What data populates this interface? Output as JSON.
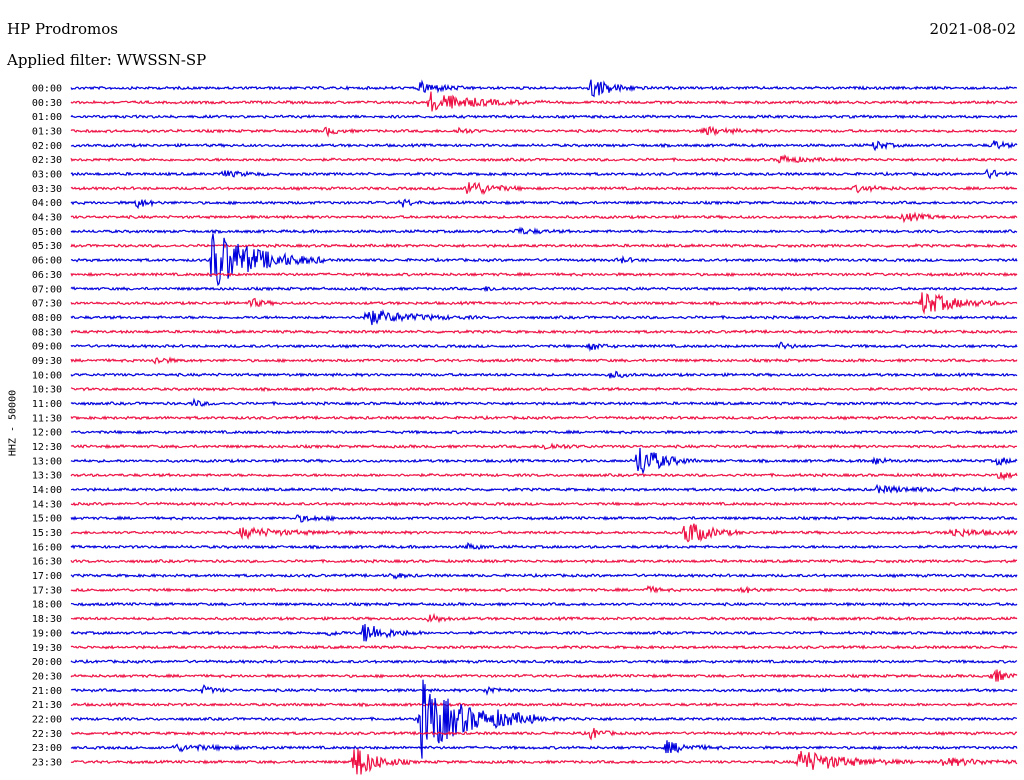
{
  "header": {
    "station": "HP Prodromos",
    "date": "2021-08-02",
    "filter": "Applied filter: WWSSN-SP"
  },
  "colors": {
    "even_trace": "#0000dd",
    "odd_trace": "#ee1144"
  },
  "chart_data": {
    "type": "line",
    "ylabel": "HHZ - 50000",
    "categories": [
      "00:00",
      "00:30",
      "01:00",
      "01:30",
      "02:00",
      "02:30",
      "03:00",
      "03:30",
      "04:00",
      "04:30",
      "05:00",
      "05:30",
      "06:00",
      "06:30",
      "07:00",
      "07:30",
      "08:00",
      "08:30",
      "09:00",
      "09:30",
      "10:00",
      "10:30",
      "11:00",
      "11:30",
      "12:00",
      "12:30",
      "13:00",
      "13:30",
      "14:00",
      "14:30",
      "15:00",
      "15:30",
      "16:00",
      "16:30",
      "17:00",
      "17:30",
      "18:00",
      "18:30",
      "19:00",
      "19:30",
      "20:00",
      "20:30",
      "21:00",
      "21:30",
      "22:00",
      "22:30",
      "23:00",
      "23:30"
    ],
    "grid": false,
    "legend": "none",
    "events": [
      {
        "row": 0,
        "x": 0.37,
        "amp": 6,
        "dur": 0.02
      },
      {
        "row": 0,
        "x": 0.55,
        "amp": 10,
        "dur": 0.02
      },
      {
        "row": 1,
        "x": 0.38,
        "amp": 10,
        "dur": 0.04
      },
      {
        "row": 3,
        "x": 0.27,
        "amp": 4,
        "dur": 0.01
      },
      {
        "row": 3,
        "x": 0.41,
        "amp": 3,
        "dur": 0.01
      },
      {
        "row": 3,
        "x": 0.67,
        "amp": 4,
        "dur": 0.02
      },
      {
        "row": 4,
        "x": 0.85,
        "amp": 5,
        "dur": 0.01
      },
      {
        "row": 4,
        "x": 0.975,
        "amp": 5,
        "dur": 0.01
      },
      {
        "row": 5,
        "x": 0.75,
        "amp": 4,
        "dur": 0.02
      },
      {
        "row": 6,
        "x": 0.16,
        "amp": 3,
        "dur": 0.02
      },
      {
        "row": 6,
        "x": 0.97,
        "amp": 5,
        "dur": 0.01
      },
      {
        "row": 7,
        "x": 0.42,
        "amp": 9,
        "dur": 0.02
      },
      {
        "row": 7,
        "x": 0.83,
        "amp": 3,
        "dur": 0.02
      },
      {
        "row": 8,
        "x": 0.07,
        "amp": 5,
        "dur": 0.01
      },
      {
        "row": 8,
        "x": 0.35,
        "amp": 4,
        "dur": 0.01
      },
      {
        "row": 9,
        "x": 0.88,
        "amp": 4,
        "dur": 0.02
      },
      {
        "row": 10,
        "x": 0.47,
        "amp": 3,
        "dur": 0.02
      },
      {
        "row": 12,
        "x": 0.15,
        "amp": 32,
        "dur": 0.04
      },
      {
        "row": 12,
        "x": 0.58,
        "amp": 3,
        "dur": 0.01
      },
      {
        "row": 14,
        "x": 0.44,
        "amp": 2,
        "dur": 0.01
      },
      {
        "row": 15,
        "x": 0.19,
        "amp": 5,
        "dur": 0.01
      },
      {
        "row": 15,
        "x": 0.9,
        "amp": 12,
        "dur": 0.03
      },
      {
        "row": 16,
        "x": 0.31,
        "amp": 8,
        "dur": 0.04
      },
      {
        "row": 18,
        "x": 0.55,
        "amp": 4,
        "dur": 0.01
      },
      {
        "row": 18,
        "x": 0.75,
        "amp": 3,
        "dur": 0.01
      },
      {
        "row": 19,
        "x": 0.09,
        "amp": 4,
        "dur": 0.01
      },
      {
        "row": 20,
        "x": 0.57,
        "amp": 4,
        "dur": 0.01
      },
      {
        "row": 22,
        "x": 0.13,
        "amp": 3,
        "dur": 0.01
      },
      {
        "row": 25,
        "x": 0.5,
        "amp": 3,
        "dur": 0.02
      },
      {
        "row": 26,
        "x": 0.6,
        "amp": 18,
        "dur": 0.02
      },
      {
        "row": 26,
        "x": 0.85,
        "amp": 4,
        "dur": 0.01
      },
      {
        "row": 26,
        "x": 0.98,
        "amp": 4,
        "dur": 0.01
      },
      {
        "row": 27,
        "x": 0.98,
        "amp": 5,
        "dur": 0.01
      },
      {
        "row": 28,
        "x": 0.85,
        "amp": 3,
        "dur": 0.04
      },
      {
        "row": 30,
        "x": 0.24,
        "amp": 3,
        "dur": 0.02
      },
      {
        "row": 31,
        "x": 0.18,
        "amp": 5,
        "dur": 0.04
      },
      {
        "row": 31,
        "x": 0.65,
        "amp": 14,
        "dur": 0.02
      },
      {
        "row": 31,
        "x": 0.93,
        "amp": 4,
        "dur": 0.03
      },
      {
        "row": 32,
        "x": 0.42,
        "amp": 3,
        "dur": 0.01
      },
      {
        "row": 34,
        "x": 0.34,
        "amp": 3,
        "dur": 0.01
      },
      {
        "row": 35,
        "x": 0.61,
        "amp": 3,
        "dur": 0.01
      },
      {
        "row": 35,
        "x": 0.71,
        "amp": 3,
        "dur": 0.01
      },
      {
        "row": 37,
        "x": 0.38,
        "amp": 5,
        "dur": 0.01
      },
      {
        "row": 38,
        "x": 0.31,
        "amp": 11,
        "dur": 0.02
      },
      {
        "row": 38,
        "x": 0.27,
        "amp": 3,
        "dur": 0.01
      },
      {
        "row": 41,
        "x": 0.975,
        "amp": 8,
        "dur": 0.01
      },
      {
        "row": 42,
        "x": 0.14,
        "amp": 4,
        "dur": 0.01
      },
      {
        "row": 42,
        "x": 0.44,
        "amp": 4,
        "dur": 0.01
      },
      {
        "row": 44,
        "x": 0.37,
        "amp": 40,
        "dur": 0.04
      },
      {
        "row": 44,
        "x": 0.45,
        "amp": 3,
        "dur": 0.04
      },
      {
        "row": 45,
        "x": 0.55,
        "amp": 6,
        "dur": 0.01
      },
      {
        "row": 46,
        "x": 0.11,
        "amp": 3,
        "dur": 0.04
      },
      {
        "row": 46,
        "x": 0.63,
        "amp": 6,
        "dur": 0.02
      },
      {
        "row": 47,
        "x": 0.3,
        "amp": 18,
        "dur": 0.02
      },
      {
        "row": 47,
        "x": 0.77,
        "amp": 12,
        "dur": 0.04
      },
      {
        "row": 47,
        "x": 0.92,
        "amp": 4,
        "dur": 0.04
      }
    ]
  }
}
